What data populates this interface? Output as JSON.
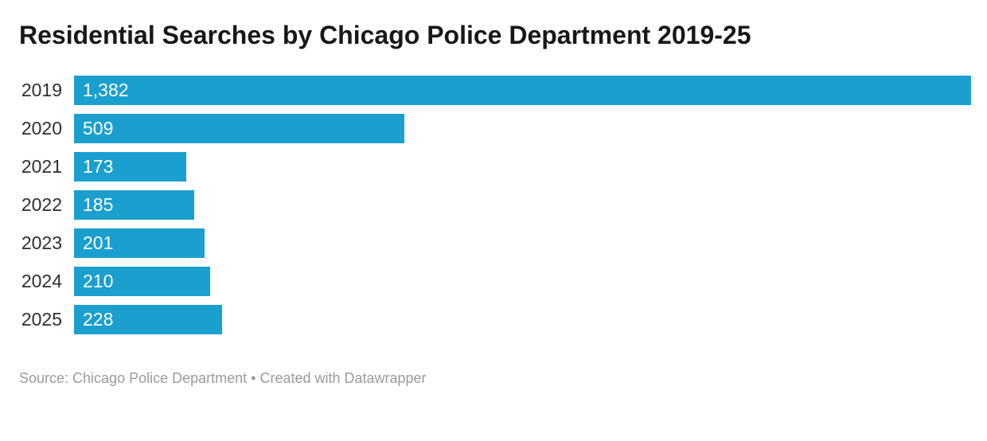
{
  "title": "Residential Searches by Chicago Police Department 2019-25",
  "footer": {
    "text": "Source: Chicago Police Department • Created with Datawrapper"
  },
  "colors": {
    "bar": "#1a9fce",
    "title_text": "#181818",
    "category_text": "#2e2e2e",
    "value_text": "#ffffff",
    "source_text": "#9a9a9a",
    "background": "#ffffff"
  },
  "chart_data": {
    "type": "bar",
    "orientation": "horizontal",
    "title": "Residential Searches by Chicago Police Department 2019-25",
    "categories": [
      "2019",
      "2020",
      "2021",
      "2022",
      "2023",
      "2024",
      "2025"
    ],
    "values": [
      1382,
      509,
      173,
      185,
      201,
      210,
      228
    ],
    "value_labels": [
      "1,382",
      "509",
      "173",
      "185",
      "201",
      "210",
      "228"
    ],
    "xlabel": "",
    "ylabel": "",
    "xlim": [
      0,
      1382
    ],
    "grid": false,
    "legend": false,
    "bar_color": "#1a9fce",
    "value_label_position": "inside-start"
  }
}
